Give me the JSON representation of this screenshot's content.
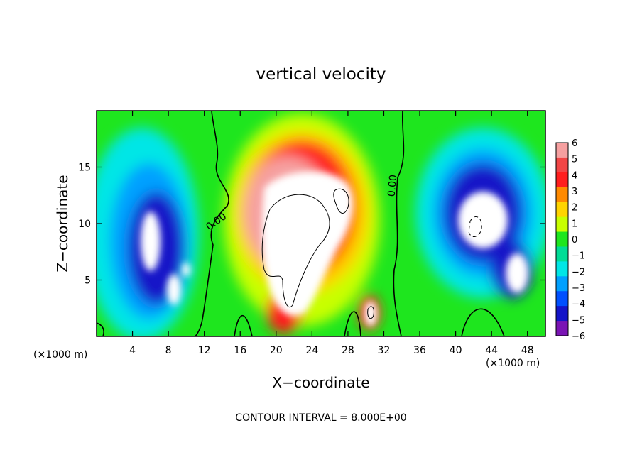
{
  "chart_data": {
    "type": "heatmap",
    "title": "vertical velocity",
    "xlabel": "X−coordinate",
    "ylabel": "Z−coordinate",
    "x_unit": "(×1000 m)",
    "y_unit": "(×1000 m)",
    "xlim": [
      0,
      50
    ],
    "ylim": [
      0,
      20
    ],
    "x_ticks": [
      4,
      8,
      12,
      16,
      20,
      24,
      28,
      32,
      36,
      40,
      44,
      48
    ],
    "y_ticks": [
      5,
      10,
      15
    ],
    "colorbar": {
      "min": -6,
      "max": 6,
      "levels": [
        6,
        5,
        4,
        3,
        2,
        1,
        0,
        -1,
        -2,
        -3,
        -4,
        -5,
        -6
      ],
      "labels": [
        "6",
        "5",
        "4",
        "3",
        "2",
        "1",
        "0",
        "−1",
        "−2",
        "−3",
        "−4",
        "−5",
        "−6"
      ],
      "colors": [
        "#f6a0a0",
        "#f24646",
        "#ff1e1e",
        "#ff8a00",
        "#ffd400",
        "#c8ff00",
        "#1ee61e",
        "#00dc96",
        "#00e6e6",
        "#00a0ff",
        "#0050ff",
        "#1414c8",
        "#7a14b4"
      ]
    },
    "contour_labels": [
      "0.00",
      "0.00"
    ],
    "features": [
      {
        "kind": "updraft",
        "x_center": 23,
        "z_center": 10,
        "w_max": "> 6"
      },
      {
        "kind": "downdraft",
        "x_center": 7,
        "z_center": 9,
        "w_min": "< -6"
      },
      {
        "kind": "downdraft",
        "x_center": 42,
        "z_center": 10,
        "w_min": "< -6"
      }
    ],
    "grid": false,
    "legend": "colorbar right"
  },
  "footer": {
    "contour_interval": "CONTOUR INTERVAL = 8.000E+00"
  }
}
